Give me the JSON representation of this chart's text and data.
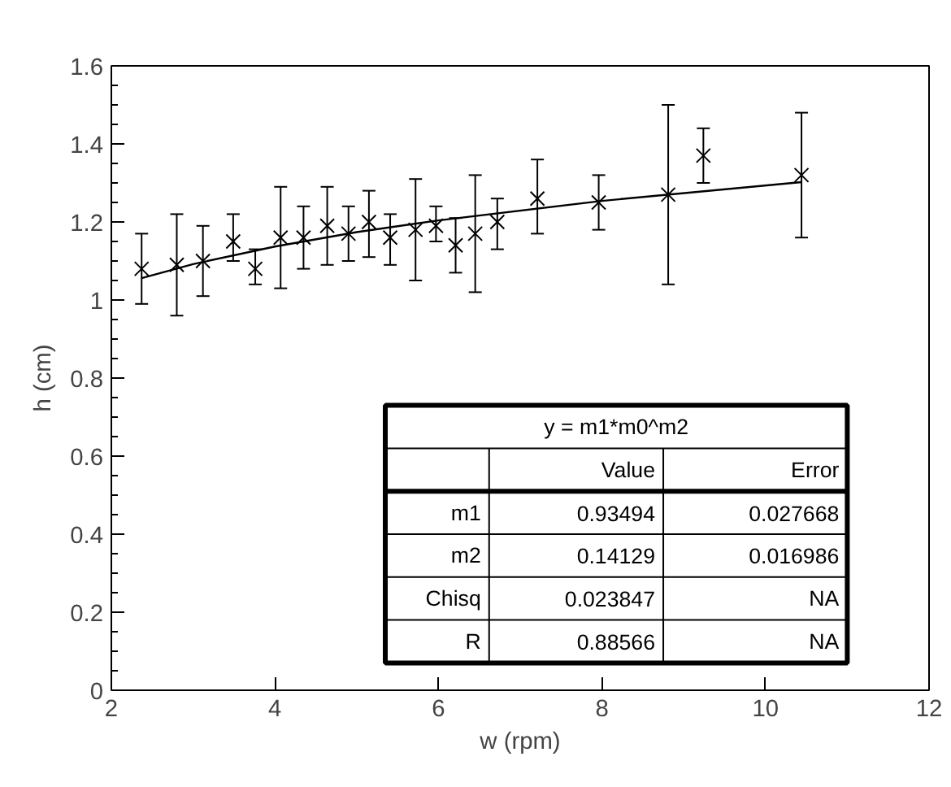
{
  "chart_data": {
    "type": "scatter",
    "xlabel": "w (rpm)",
    "ylabel": "h (cm)",
    "xlim": [
      2,
      12
    ],
    "xticks": [
      2,
      4,
      6,
      8,
      10,
      12
    ],
    "ylim": [
      0,
      1.6
    ],
    "yticks": [
      0,
      0.2,
      0.4,
      0.6,
      0.8,
      1,
      1.2,
      1.4,
      1.6
    ],
    "grid": false,
    "series": [
      {
        "marker": "cross",
        "color": "#000000",
        "x": [
          2.37,
          2.8,
          3.12,
          3.49,
          3.76,
          4.07,
          4.35,
          4.64,
          4.9,
          5.15,
          5.41,
          5.72,
          5.97,
          6.21,
          6.45,
          6.72,
          7.21,
          7.96,
          8.81,
          9.24,
          10.44
        ],
        "values": [
          1.08,
          1.09,
          1.1,
          1.15,
          1.08,
          1.16,
          1.16,
          1.19,
          1.17,
          1.2,
          1.16,
          1.18,
          1.19,
          1.14,
          1.17,
          1.2,
          1.26,
          1.25,
          1.27,
          1.37,
          1.32
        ],
        "errors": [
          [
            0.99,
            1.17
          ],
          [
            0.96,
            1.22
          ],
          [
            1.01,
            1.19
          ],
          [
            1.1,
            1.22
          ],
          [
            1.04,
            1.13
          ],
          [
            1.03,
            1.29
          ],
          [
            1.08,
            1.24
          ],
          [
            1.09,
            1.29
          ],
          [
            1.1,
            1.24
          ],
          [
            1.11,
            1.28
          ],
          [
            1.09,
            1.22
          ],
          [
            1.05,
            1.31
          ],
          [
            1.15,
            1.24
          ],
          [
            1.07,
            1.21
          ],
          [
            1.02,
            1.32
          ],
          [
            1.13,
            1.26
          ],
          [
            1.17,
            1.36
          ],
          [
            1.18,
            1.32
          ],
          [
            1.04,
            1.5
          ],
          [
            1.3,
            1.44
          ],
          [
            1.16,
            1.48
          ]
        ]
      },
      {
        "type": "line",
        "marker": "none",
        "color": "#000000",
        "line_style": "solid",
        "x": [
          2.37,
          3,
          4,
          5,
          6,
          8,
          10.44
        ],
        "values": [
          1.056,
          1.092,
          1.137,
          1.174,
          1.204,
          1.254,
          1.302
        ]
      }
    ],
    "annotations": [
      "y = m1*m0^m2",
      "Value",
      "Error",
      "m1",
      "0.93494",
      "0.027668",
      "m2",
      "0.14129",
      "0.016986",
      "Chisq",
      "0.023847",
      "NA",
      "R",
      "0.88566",
      "NA"
    ]
  }
}
